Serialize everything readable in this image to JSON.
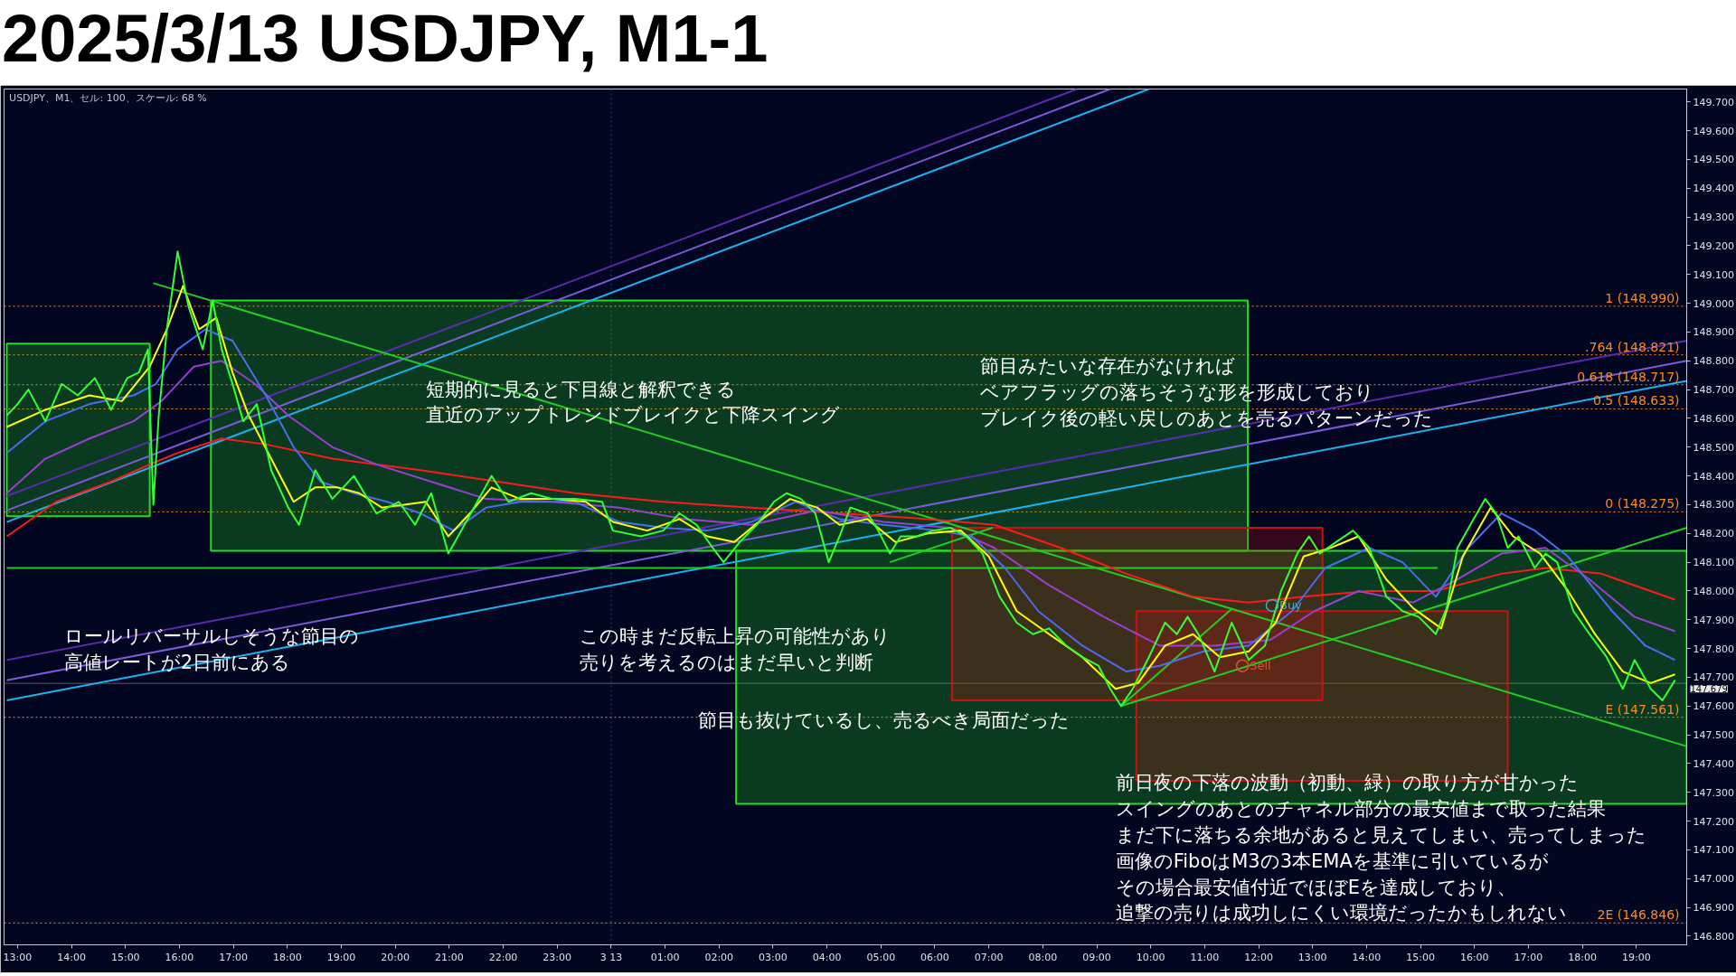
{
  "chart_data": {
    "type": "line",
    "title": "2025/3/13 USDJPY, M1-1",
    "annotations": [
      "USDJPY、M1、セル: 100、スケール: 68 %",
      "ロールリバーサルしそうな節目の高値レートが2日前にある",
      "短期的に見ると下目線と解釈できる直近のアップトレンドブレイクと下降スイング",
      "節目みたいな存在がなければベアフラッグの落ちそうな形を形成しておりブレイク後の軽い戻しのあとを売るパターンだった",
      "この時まだ反転上昇の可能性があり売りを考えるのはまだ早いと判断",
      "節目も抜けているし、売るべき局面だった",
      "前日夜の下落の波動（初動、緑）の取り方が甘かったスイングのあとのチャネル部分の最安値まで取った結果まだ下に落ちる余地があると見えてしまい、売ってしまった画像のFiboはM3の3本EMAを基準に引いているがその場合最安値付近でほぼEを達成しており、追撃の売りは成功しにくい環境だったかもしれない"
    ],
    "xlim": [
      "2025-03-12T12:45",
      "2025-03-13T19:56"
    ],
    "ylim": [
      146.77,
      149.745
    ],
    "xticks": [
      {
        "value": "2025-03-12T13:00",
        "label": "13:00"
      },
      {
        "value": "2025-03-12T14:00",
        "label": "14:00"
      },
      {
        "value": "2025-03-12T15:00",
        "label": "15:00"
      },
      {
        "value": "2025-03-12T16:00",
        "label": "16:00"
      },
      {
        "value": "2025-03-12T17:00",
        "label": "17:00"
      },
      {
        "value": "2025-03-12T18:00",
        "label": "18:00"
      },
      {
        "value": "2025-03-12T19:00",
        "label": "19:00"
      },
      {
        "value": "2025-03-12T20:00",
        "label": "20:00"
      },
      {
        "value": "2025-03-12T21:00",
        "label": "21:00"
      },
      {
        "value": "2025-03-12T22:00",
        "label": "22:00"
      },
      {
        "value": "2025-03-12T23:00",
        "label": "23:00"
      },
      {
        "value": "2025-03-13T00:00",
        "label": "3 13"
      },
      {
        "value": "2025-03-13T01:00",
        "label": "01:00"
      },
      {
        "value": "2025-03-13T02:00",
        "label": "02:00"
      },
      {
        "value": "2025-03-13T03:00",
        "label": "03:00"
      },
      {
        "value": "2025-03-13T04:00",
        "label": "04:00"
      },
      {
        "value": "2025-03-13T05:00",
        "label": "05:00"
      },
      {
        "value": "2025-03-13T06:00",
        "label": "06:00"
      },
      {
        "value": "2025-03-13T07:00",
        "label": "07:00"
      },
      {
        "value": "2025-03-13T08:00",
        "label": "08:00"
      },
      {
        "value": "2025-03-13T09:00",
        "label": "09:00"
      },
      {
        "value": "2025-03-13T10:00",
        "label": "10:00"
      },
      {
        "value": "2025-03-13T11:00",
        "label": "11:00"
      },
      {
        "value": "2025-03-13T12:00",
        "label": "12:00"
      },
      {
        "value": "2025-03-13T13:00",
        "label": "13:00"
      },
      {
        "value": "2025-03-13T14:00",
        "label": "14:00"
      },
      {
        "value": "2025-03-13T15:00",
        "label": "15:00"
      },
      {
        "value": "2025-03-13T16:00",
        "label": "16:00"
      },
      {
        "value": "2025-03-13T17:00",
        "label": "17:00"
      },
      {
        "value": "2025-03-13T18:00",
        "label": "18:00"
      },
      {
        "value": "2025-03-13T19:00",
        "label": "19:00"
      }
    ],
    "yticks": [
      {
        "value": 146.8,
        "label": "146.800"
      },
      {
        "value": 146.9,
        "label": "146.900"
      },
      {
        "value": 147.0,
        "label": "147.000"
      },
      {
        "value": 147.1,
        "label": "147.100"
      },
      {
        "value": 147.2,
        "label": "147.200"
      },
      {
        "value": 147.3,
        "label": "147.300"
      },
      {
        "value": 147.4,
        "label": "147.400"
      },
      {
        "value": 147.5,
        "label": "147.500"
      },
      {
        "value": 147.6,
        "label": "147.600"
      },
      {
        "value": 147.7,
        "label": "147.700"
      },
      {
        "value": 147.8,
        "label": "147.800"
      },
      {
        "value": 147.9,
        "label": "147.900"
      },
      {
        "value": 148.0,
        "label": "148.000"
      },
      {
        "value": 148.1,
        "label": "148.100"
      },
      {
        "value": 148.2,
        "label": "148.200"
      },
      {
        "value": 148.3,
        "label": "148.300"
      },
      {
        "value": 148.4,
        "label": "148.400"
      },
      {
        "value": 148.5,
        "label": "148.500"
      },
      {
        "value": 148.6,
        "label": "148.600"
      },
      {
        "value": 148.7,
        "label": "148.700"
      },
      {
        "value": 148.8,
        "label": "148.800"
      },
      {
        "value": 148.9,
        "label": "148.900"
      },
      {
        "value": 149.0,
        "label": "149.000"
      },
      {
        "value": 149.1,
        "label": "149.100"
      },
      {
        "value": 149.2,
        "label": "149.200"
      },
      {
        "value": 149.3,
        "label": "149.300"
      },
      {
        "value": 149.4,
        "label": "149.400"
      },
      {
        "value": 149.5,
        "label": "149.500"
      },
      {
        "value": 149.6,
        "label": "149.600"
      },
      {
        "value": 149.7,
        "label": "149.700"
      }
    ],
    "grid": false,
    "ref_lines": [
      {
        "axis": "x",
        "value": "2025-03-13T00:00",
        "label": null,
        "color": "#3a3a5c",
        "line_style": "dotted"
      },
      {
        "axis": "y",
        "value": 148.99,
        "label": "1 (148.990)",
        "color": "#ff8c1a",
        "line_style": "dotted"
      },
      {
        "axis": "y",
        "value": 148.821,
        "label": ".764 (148.821)",
        "color": "#ff8c1a",
        "line_style": "dotted"
      },
      {
        "axis": "y",
        "value": 148.717,
        "label": "0.618 (148.717)",
        "color": "#ff8c1a",
        "line_style": "dotted"
      },
      {
        "axis": "y",
        "value": 148.633,
        "label": "0.5 (148.633)",
        "color": "#ff8c1a",
        "line_style": "dotted"
      },
      {
        "axis": "y",
        "value": 148.275,
        "label": "0 (148.275)",
        "color": "#ff8c1a",
        "line_style": "dotted"
      },
      {
        "axis": "y",
        "value": 147.561,
        "label": "E (147.561)",
        "color": "#ff8c1a",
        "line_style": "dotted"
      },
      {
        "axis": "y",
        "value": 146.846,
        "label": "2E (146.846)",
        "color": "#ff8c1a",
        "line_style": "dotted"
      },
      {
        "axis": "y",
        "value": 147.679,
        "label": "147.679",
        "color": "#5a5a6a",
        "line_style": "solid"
      }
    ],
    "series": [
      {
        "type": "area",
        "color": "#22dd22",
        "x": [
          "2025-03-12T12:48",
          "2025-03-12T15:27",
          "2025-03-12T15:27",
          "2025-03-12T12:48"
        ],
        "values": [
          148.86,
          148.86,
          148.26,
          148.26
        ]
      },
      {
        "type": "area",
        "color": "#22dd22",
        "x": [
          "2025-03-12T16:35",
          "2025-03-13T11:48",
          "2025-03-13T11:48",
          "2025-03-12T16:35"
        ],
        "values": [
          149.01,
          149.01,
          148.14,
          148.14
        ]
      },
      {
        "type": "area",
        "color": "#22dd22",
        "x": [
          "2025-03-13T02:19",
          "2025-03-13T19:56",
          "2025-03-13T19:56",
          "2025-03-13T02:19"
        ],
        "values": [
          148.14,
          148.14,
          147.26,
          147.26
        ]
      },
      {
        "type": "area",
        "color": "#cc1111",
        "x": [
          "2025-03-13T06:19",
          "2025-03-13T13:11",
          "2025-03-13T13:11",
          "2025-03-13T06:19"
        ],
        "values": [
          148.22,
          148.22,
          147.62,
          147.62
        ]
      },
      {
        "type": "area",
        "color": "#cc1111",
        "x": [
          "2025-03-13T09:44",
          "2025-03-13T16:37",
          "2025-03-13T16:37",
          "2025-03-13T09:44"
        ],
        "values": [
          147.93,
          147.93,
          147.34,
          147.34
        ]
      },
      {
        "color": "#5b2bb0",
        "x": [
          "2025-03-12T12:48",
          "2025-03-13T08:38"
        ],
        "values": [
          148.33,
          149.745
        ]
      },
      {
        "color": "#7a5ad8",
        "x": [
          "2025-03-12T12:48",
          "2025-03-13T09:15"
        ],
        "values": [
          148.28,
          149.745
        ]
      },
      {
        "color": "#1ab2f0",
        "x": [
          "2025-03-12T12:48",
          "2025-03-13T09:58"
        ],
        "values": [
          148.24,
          149.745
        ]
      },
      {
        "color": "#5b2bb0",
        "x": [
          "2025-03-12T12:48",
          "2025-03-13T19:56"
        ],
        "values": [
          147.76,
          148.87
        ]
      },
      {
        "color": "#7a5ad8",
        "x": [
          "2025-03-12T12:48",
          "2025-03-13T19:56"
        ],
        "values": [
          147.69,
          148.8
        ]
      },
      {
        "color": "#1ab2f0",
        "x": [
          "2025-03-12T12:48",
          "2025-03-13T19:56"
        ],
        "values": [
          147.62,
          148.73
        ]
      },
      {
        "color": "#22cc22",
        "x": [
          "2025-03-12T15:31",
          "2025-03-13T19:56"
        ],
        "values": [
          149.07,
          147.46
        ]
      },
      {
        "color": "#22cc22",
        "x": [
          "2025-03-13T09:27",
          "2025-03-13T19:56"
        ],
        "values": [
          147.6,
          148.22
        ]
      },
      {
        "color": "#22cc22",
        "x": [
          "2025-03-13T09:27",
          "2025-03-13T11:31"
        ],
        "values": [
          147.6,
          147.94
        ]
      },
      {
        "color": "#22cc22",
        "x": [
          "2025-03-13T05:10",
          "2025-03-13T07:04"
        ],
        "values": [
          148.1,
          148.22
        ]
      },
      {
        "color": "#22cc22",
        "x": [
          "2025-03-12T12:48",
          "2025-03-13T15:19"
        ],
        "values": [
          148.08,
          148.08
        ]
      },
      {
        "color": "#ff1a1a",
        "x": [
          "2025-03-12T12:48",
          "2025-03-12T13:43",
          "2025-03-12T14:44",
          "2025-03-12T15:27",
          "2025-03-12T15:58",
          "2025-03-12T16:47",
          "2025-03-12T17:36",
          "2025-03-12T18:50",
          "2025-03-12T20:28",
          "2025-03-12T21:54",
          "2025-03-12T23:20",
          "2025-03-13T00:58",
          "2025-03-13T02:36",
          "2025-03-13T04:14",
          "2025-03-13T05:52",
          "2025-03-13T07:06",
          "2025-03-13T08:20",
          "2025-03-13T09:33",
          "2025-03-13T10:47",
          "2025-03-13T11:49",
          "2025-03-13T12:50",
          "2025-03-13T14:03",
          "2025-03-13T15:17",
          "2025-03-13T16:30",
          "2025-03-13T17:19",
          "2025-03-13T18:21",
          "2025-03-13T19:43"
        ],
        "values": [
          148.19,
          148.31,
          148.38,
          148.44,
          148.48,
          148.53,
          148.51,
          148.46,
          148.42,
          148.38,
          148.34,
          148.31,
          148.29,
          148.27,
          148.25,
          148.23,
          148.15,
          148.06,
          147.98,
          147.96,
          147.98,
          148.0,
          148.0,
          148.06,
          148.08,
          148.06,
          147.97
        ]
      },
      {
        "color": "#9a3fd0",
        "x": [
          "2025-03-12T12:48",
          "2025-03-12T13:31",
          "2025-03-12T14:20",
          "2025-03-12T15:09",
          "2025-03-12T15:40",
          "2025-03-12T16:16",
          "2025-03-12T16:47",
          "2025-03-12T17:24",
          "2025-03-12T18:01",
          "2025-03-12T18:50",
          "2025-03-12T19:39",
          "2025-03-12T20:40",
          "2025-03-12T21:41",
          "2025-03-12T22:55",
          "2025-03-13T00:09",
          "2025-03-13T01:22",
          "2025-03-13T02:36",
          "2025-03-13T03:49",
          "2025-03-13T05:03",
          "2025-03-13T06:17",
          "2025-03-13T07:06",
          "2025-03-13T08:07",
          "2025-03-13T09:08",
          "2025-03-13T10:10",
          "2025-03-13T11:11",
          "2025-03-13T12:13",
          "2025-03-13T13:02",
          "2025-03-13T13:51",
          "2025-03-13T14:52",
          "2025-03-13T15:41",
          "2025-03-13T16:30",
          "2025-03-13T17:19",
          "2025-03-13T18:08",
          "2025-03-13T18:58",
          "2025-03-13T19:43"
        ],
        "values": [
          148.34,
          148.46,
          148.53,
          148.59,
          148.66,
          148.78,
          148.8,
          148.72,
          148.61,
          148.5,
          148.44,
          148.38,
          148.32,
          148.31,
          148.29,
          148.25,
          148.23,
          148.28,
          148.24,
          148.22,
          148.15,
          148.02,
          147.91,
          147.81,
          147.81,
          147.83,
          147.93,
          148.0,
          147.96,
          148.04,
          148.13,
          148.15,
          148.04,
          147.91,
          147.86
        ]
      },
      {
        "color": "#4a6cf0",
        "x": [
          "2025-03-12T12:48",
          "2025-03-12T13:31",
          "2025-03-12T14:20",
          "2025-03-12T15:09",
          "2025-03-12T15:34",
          "2025-03-12T15:58",
          "2025-03-12T16:29",
          "2025-03-12T16:59",
          "2025-03-12T17:36",
          "2025-03-12T18:07",
          "2025-03-12T18:37",
          "2025-03-12T19:14",
          "2025-03-12T19:51",
          "2025-03-12T20:28",
          "2025-03-12T21:05",
          "2025-03-12T21:41",
          "2025-03-12T22:19",
          "2025-03-12T23:20",
          "2025-03-13T00:09",
          "2025-03-13T00:58",
          "2025-03-13T01:47",
          "2025-03-13T02:36",
          "2025-03-13T03:25",
          "2025-03-13T04:14",
          "2025-03-13T05:03",
          "2025-03-13T06:04",
          "2025-03-13T06:41",
          "2025-03-13T07:18",
          "2025-03-13T07:55",
          "2025-03-13T08:44",
          "2025-03-13T09:33",
          "2025-03-13T10:10",
          "2025-03-13T10:59",
          "2025-03-13T11:49",
          "2025-03-13T12:37",
          "2025-03-13T13:14",
          "2025-03-13T14:03",
          "2025-03-13T14:40",
          "2025-03-13T15:17",
          "2025-03-13T15:53",
          "2025-03-13T16:30",
          "2025-03-13T17:07",
          "2025-03-13T17:44",
          "2025-03-13T18:33",
          "2025-03-13T19:10",
          "2025-03-13T19:43"
        ],
        "values": [
          148.48,
          148.59,
          148.65,
          148.68,
          148.72,
          148.84,
          148.91,
          148.87,
          148.68,
          148.5,
          148.38,
          148.34,
          148.31,
          148.27,
          148.21,
          148.29,
          148.31,
          148.31,
          148.24,
          148.22,
          148.21,
          148.24,
          148.31,
          148.25,
          148.23,
          148.21,
          148.19,
          148.08,
          147.93,
          147.81,
          147.72,
          147.74,
          147.79,
          147.81,
          147.93,
          148.08,
          148.15,
          148.1,
          147.98,
          148.15,
          148.27,
          148.21,
          148.12,
          147.93,
          147.81,
          147.76
        ]
      },
      {
        "color": "#ffff00",
        "x": [
          "2025-03-12T12:48",
          "2025-03-12T13:31",
          "2025-03-12T14:20",
          "2025-03-12T14:56",
          "2025-03-12T15:27",
          "2025-03-12T15:46",
          "2025-03-12T16:04",
          "2025-03-12T16:22",
          "2025-03-12T16:41",
          "2025-03-12T16:59",
          "2025-03-12T17:17",
          "2025-03-12T17:42",
          "2025-03-12T18:07",
          "2025-03-12T18:31",
          "2025-03-12T18:56",
          "2025-03-12T19:20",
          "2025-03-12T19:45",
          "2025-03-12T20:10",
          "2025-03-12T20:34",
          "2025-03-12T20:59",
          "2025-03-12T21:23",
          "2025-03-12T21:47",
          "2025-03-12T22:19",
          "2025-03-12T22:55",
          "2025-03-12T23:32",
          "2025-03-13T00:02",
          "2025-03-13T00:40",
          "2025-03-13T01:16",
          "2025-03-13T01:47",
          "2025-03-13T02:17",
          "2025-03-13T02:48",
          "2025-03-13T03:19",
          "2025-03-13T03:49",
          "2025-03-13T04:14",
          "2025-03-13T04:45",
          "2025-03-13T05:16",
          "2025-03-13T05:52",
          "2025-03-13T06:29",
          "2025-03-13T07:00",
          "2025-03-13T07:31",
          "2025-03-13T08:07",
          "2025-03-13T08:44",
          "2025-03-13T09:21",
          "2025-03-13T09:46",
          "2025-03-13T10:16",
          "2025-03-13T10:47",
          "2025-03-13T11:17",
          "2025-03-13T11:49",
          "2025-03-13T12:19",
          "2025-03-13T12:50",
          "2025-03-13T13:20",
          "2025-03-13T13:51",
          "2025-03-13T14:22",
          "2025-03-13T14:52",
          "2025-03-13T15:23",
          "2025-03-13T15:47",
          "2025-03-13T16:18",
          "2025-03-13T16:43",
          "2025-03-13T17:13",
          "2025-03-13T17:44",
          "2025-03-13T18:14",
          "2025-03-13T18:45",
          "2025-03-13T19:16",
          "2025-03-13T19:43"
        ],
        "values": [
          148.57,
          148.63,
          148.68,
          148.66,
          148.78,
          148.91,
          149.06,
          148.91,
          148.95,
          148.76,
          148.61,
          148.46,
          148.31,
          148.36,
          148.36,
          148.34,
          148.29,
          148.3,
          148.31,
          148.19,
          148.27,
          148.36,
          148.32,
          148.32,
          148.31,
          148.24,
          148.21,
          148.25,
          148.19,
          148.17,
          148.25,
          148.32,
          148.29,
          148.23,
          148.25,
          148.17,
          148.2,
          148.21,
          148.12,
          147.93,
          147.85,
          147.77,
          147.66,
          147.68,
          147.81,
          147.85,
          147.77,
          147.79,
          147.89,
          148.12,
          148.15,
          148.19,
          148.04,
          147.94,
          147.87,
          148.12,
          148.29,
          148.19,
          148.13,
          148.0,
          147.85,
          147.72,
          147.68,
          147.71
        ]
      },
      {
        "color": "#33ff33",
        "x": [
          "2025-03-12T12:48",
          "2025-03-12T13:00",
          "2025-03-12T13:12",
          "2025-03-12T13:31",
          "2025-03-12T13:49",
          "2025-03-12T14:07",
          "2025-03-12T14:26",
          "2025-03-12T14:44",
          "2025-03-12T15:02",
          "2025-03-12T15:15",
          "2025-03-12T15:25",
          "2025-03-12T15:31",
          "2025-03-12T15:37",
          "2025-03-12T15:46",
          "2025-03-12T15:58",
          "2025-03-12T16:10",
          "2025-03-12T16:26",
          "2025-03-12T16:37",
          "2025-03-12T16:47",
          "2025-03-12T16:59",
          "2025-03-12T17:11",
          "2025-03-12T17:26",
          "2025-03-12T17:42",
          "2025-03-12T18:01",
          "2025-03-12T18:13",
          "2025-03-12T18:31",
          "2025-03-12T18:50",
          "2025-03-12T19:14",
          "2025-03-12T19:39",
          "2025-03-12T20:04",
          "2025-03-12T20:22",
          "2025-03-12T20:40",
          "2025-03-12T20:59",
          "2025-03-12T21:17",
          "2025-03-12T21:47",
          "2025-03-12T22:06",
          "2025-03-12T22:31",
          "2025-03-12T22:55",
          "2025-03-12T23:20",
          "2025-03-12T23:50",
          "2025-03-13T00:02",
          "2025-03-13T00:33",
          "2025-03-13T00:58",
          "2025-03-13T01:16",
          "2025-03-13T01:35",
          "2025-03-13T01:53",
          "2025-03-13T02:05",
          "2025-03-13T02:23",
          "2025-03-13T02:42",
          "2025-03-13T03:01",
          "2025-03-13T03:15",
          "2025-03-13T03:31",
          "2025-03-13T03:47",
          "2025-03-13T04:02",
          "2025-03-13T04:14",
          "2025-03-13T04:26",
          "2025-03-13T04:45",
          "2025-03-13T04:57",
          "2025-03-13T05:10",
          "2025-03-13T05:22",
          "2025-03-13T05:40",
          "2025-03-13T05:58",
          "2025-03-13T06:17",
          "2025-03-13T06:35",
          "2025-03-13T06:53",
          "2025-03-13T07:12",
          "2025-03-13T07:31",
          "2025-03-13T07:49",
          "2025-03-13T08:07",
          "2025-03-13T08:26",
          "2025-03-13T08:44",
          "2025-03-13T09:02",
          "2025-03-13T09:15",
          "2025-03-13T09:27",
          "2025-03-13T09:40",
          "2025-03-13T09:58",
          "2025-03-13T10:16",
          "2025-03-13T10:29",
          "2025-03-13T10:41",
          "2025-03-13T10:53",
          "2025-03-13T11:11",
          "2025-03-13T11:30",
          "2025-03-13T11:49",
          "2025-03-13T12:07",
          "2025-03-13T12:25",
          "2025-03-13T12:43",
          "2025-03-13T12:56",
          "2025-03-13T13:08",
          "2025-03-13T13:26",
          "2025-03-13T13:45",
          "2025-03-13T14:03",
          "2025-03-13T14:22",
          "2025-03-13T14:40",
          "2025-03-13T14:58",
          "2025-03-13T15:17",
          "2025-03-13T15:29",
          "2025-03-13T15:41",
          "2025-03-13T15:59",
          "2025-03-13T16:12",
          "2025-03-13T16:24",
          "2025-03-13T16:37",
          "2025-03-13T16:49",
          "2025-03-13T17:07",
          "2025-03-13T17:19",
          "2025-03-13T17:32",
          "2025-03-13T17:50",
          "2025-03-13T18:08",
          "2025-03-13T18:27",
          "2025-03-13T18:45",
          "2025-03-13T18:58",
          "2025-03-13T19:16",
          "2025-03-13T19:29",
          "2025-03-13T19:43"
        ],
        "values": [
          148.61,
          148.65,
          148.7,
          148.59,
          148.72,
          148.68,
          148.74,
          148.63,
          148.74,
          148.76,
          148.84,
          148.3,
          148.61,
          148.91,
          149.18,
          148.99,
          148.84,
          149.01,
          148.84,
          148.72,
          148.59,
          148.65,
          148.42,
          148.29,
          148.23,
          148.42,
          148.32,
          148.4,
          148.27,
          148.31,
          148.23,
          148.34,
          148.13,
          148.23,
          148.4,
          148.31,
          148.34,
          148.32,
          148.32,
          148.31,
          148.21,
          148.19,
          148.21,
          148.27,
          148.23,
          148.15,
          148.1,
          148.17,
          148.23,
          148.31,
          148.34,
          148.32,
          148.27,
          148.1,
          148.19,
          148.29,
          148.27,
          148.21,
          148.13,
          148.19,
          148.19,
          148.21,
          148.22,
          148.19,
          148.13,
          147.98,
          147.89,
          147.85,
          147.87,
          147.81,
          147.77,
          147.74,
          147.66,
          147.6,
          147.66,
          147.77,
          147.89,
          147.85,
          147.91,
          147.85,
          147.72,
          147.89,
          147.76,
          147.81,
          148.0,
          148.13,
          148.19,
          148.13,
          148.17,
          148.21,
          148.15,
          147.98,
          147.93,
          147.91,
          147.85,
          147.94,
          148.15,
          148.25,
          148.32,
          148.27,
          148.15,
          148.19,
          148.08,
          148.13,
          148.1,
          147.93,
          147.85,
          147.77,
          147.66,
          147.76,
          147.66,
          147.62,
          147.69
        ]
      },
      {
        "type": "scatter",
        "name": "Buy",
        "color": "#40b0c0",
        "marker": "circle",
        "x": [
          "2025-03-13T12:15"
        ],
        "values": [
          147.95
        ]
      },
      {
        "type": "scatter",
        "name": "Sell",
        "color": "#e05030",
        "marker": "circle",
        "x": [
          "2025-03-13T11:42"
        ],
        "values": [
          147.74
        ]
      }
    ]
  }
}
